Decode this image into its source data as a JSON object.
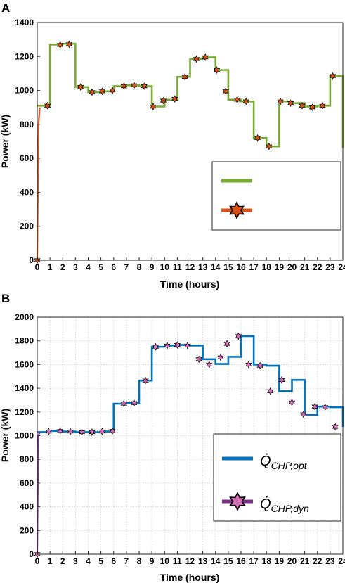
{
  "chart_data": [
    {
      "panel_label": "A",
      "type": "line",
      "step": true,
      "xlabel": "Time (hours)",
      "ylabel": "Power (kW)",
      "xlim": [
        0,
        24
      ],
      "ylim": [
        0,
        1400
      ],
      "xticks": [
        0,
        1,
        2,
        3,
        4,
        5,
        6,
        7,
        8,
        9,
        10,
        11,
        12,
        13,
        14,
        15,
        16,
        17,
        18,
        19,
        20,
        21,
        22,
        23,
        24
      ],
      "yticks": [
        0,
        200,
        400,
        600,
        800,
        1000,
        1200,
        1400
      ],
      "grid": false,
      "legend_position": "lower-right",
      "series": [
        {
          "label": "",
          "style": "line",
          "color": "#77AC30",
          "values": [
            910,
            1270,
            1275,
            1020,
            990,
            995,
            1025,
            1030,
            1025,
            905,
            945,
            1080,
            1185,
            1195,
            1120,
            945,
            935,
            720,
            670,
            935,
            925,
            905,
            910,
            1085
          ],
          "end_value": 660
        },
        {
          "label": "",
          "style": "line-star",
          "color": "#D95319",
          "marker_fill": "#D95319",
          "ramp": [
            [
              0,
              0
            ],
            [
              0.1,
              800
            ],
            [
              0.2,
              900
            ]
          ],
          "points": [
            [
              0,
              0
            ],
            [
              0.8,
              910
            ],
            [
              1.8,
              1268
            ],
            [
              2.5,
              1272
            ],
            [
              3.4,
              1020
            ],
            [
              4.3,
              990
            ],
            [
              5.1,
              995
            ],
            [
              5.9,
              1000
            ],
            [
              6.8,
              1025
            ],
            [
              7.6,
              1030
            ],
            [
              8.4,
              1025
            ],
            [
              9.1,
              905
            ],
            [
              9.9,
              940
            ],
            [
              10.8,
              950
            ],
            [
              11.6,
              1080
            ],
            [
              12.5,
              1185
            ],
            [
              13.2,
              1195
            ],
            [
              14.1,
              1120
            ],
            [
              14.8,
              995
            ],
            [
              15.7,
              945
            ],
            [
              16.4,
              935
            ],
            [
              17.3,
              720
            ],
            [
              18.2,
              670
            ],
            [
              19.1,
              935
            ],
            [
              19.9,
              925
            ],
            [
              20.8,
              910
            ],
            [
              21.6,
              900
            ],
            [
              22.4,
              910
            ],
            [
              23.2,
              1085
            ]
          ]
        }
      ]
    },
    {
      "panel_label": "B",
      "type": "line",
      "step": true,
      "xlabel": "Time (hours)",
      "ylabel": "Power (kW)",
      "xlim": [
        0,
        24
      ],
      "ylim": [
        0,
        2000
      ],
      "xticks": [
        0,
        1,
        2,
        3,
        4,
        5,
        6,
        7,
        8,
        9,
        10,
        11,
        12,
        13,
        14,
        15,
        16,
        17,
        18,
        19,
        20,
        21,
        22,
        23,
        24
      ],
      "yticks": [
        0,
        200,
        400,
        600,
        800,
        1000,
        1200,
        1400,
        1600,
        1800,
        2000
      ],
      "grid": true,
      "legend_position": "lower-right",
      "series": [
        {
          "label_base": "Q̇",
          "label_sub": "CHP,opt",
          "style": "line",
          "color": "#0072BD",
          "values": [
            1030,
            1040,
            1035,
            1030,
            1030,
            1035,
            1270,
            1275,
            1465,
            1750,
            1760,
            1765,
            1760,
            1645,
            1605,
            1665,
            1840,
            1600,
            1590,
            1375,
            1470,
            1175,
            1245,
            1240
          ],
          "end_value": 1075
        },
        {
          "label_base": "Q̇",
          "label_sub": "CHP,dyn",
          "style": "line-star",
          "color": "#7E2F8E",
          "marker_fill": "#D46FB8",
          "ramp": [
            [
              0,
              0
            ],
            [
              0.08,
              1000
            ],
            [
              0.2,
              1030
            ]
          ],
          "points": [
            [
              0,
              0
            ],
            [
              0.9,
              1035
            ],
            [
              1.8,
              1040
            ],
            [
              2.6,
              1035
            ],
            [
              3.5,
              1030
            ],
            [
              4.3,
              1030
            ],
            [
              5.1,
              1035
            ],
            [
              5.9,
              1040
            ],
            [
              6.8,
              1270
            ],
            [
              7.6,
              1275
            ],
            [
              8.5,
              1465
            ],
            [
              9.3,
              1750
            ],
            [
              10.2,
              1760
            ],
            [
              11.0,
              1765
            ],
            [
              11.8,
              1760
            ],
            [
              12.7,
              1645
            ],
            [
              13.5,
              1600
            ],
            [
              14.4,
              1660
            ],
            [
              14.9,
              1775
            ],
            [
              15.8,
              1840
            ],
            [
              16.6,
              1600
            ],
            [
              17.5,
              1590
            ],
            [
              18.3,
              1375
            ],
            [
              19.2,
              1470
            ],
            [
              20.0,
              1280
            ],
            [
              20.9,
              1180
            ],
            [
              21.8,
              1245
            ],
            [
              22.6,
              1240
            ],
            [
              23.4,
              1075
            ]
          ]
        }
      ]
    }
  ]
}
